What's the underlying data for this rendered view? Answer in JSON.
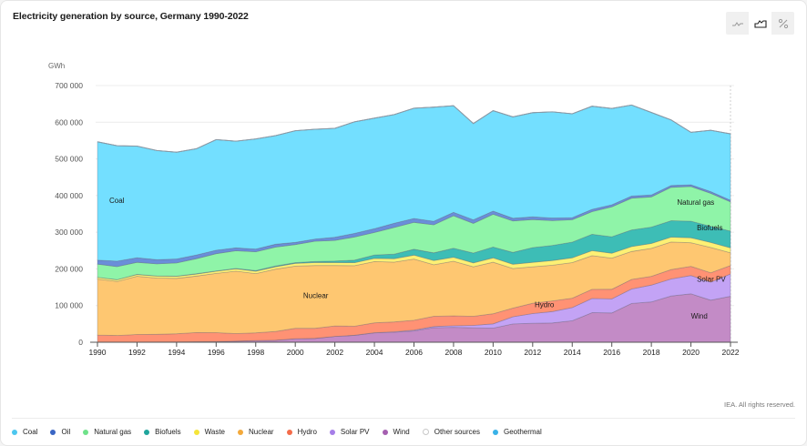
{
  "header": {
    "title": "Electricity generation by source, Germany 1990-2022"
  },
  "view_toggle": {
    "options": [
      {
        "name": "line-view",
        "icon": "line-chart-icon",
        "active": false
      },
      {
        "name": "area-view",
        "icon": "area-chart-icon",
        "active": true
      },
      {
        "name": "percent-view",
        "icon": "percent-icon",
        "active": false
      }
    ]
  },
  "footer": {
    "credit": "IEA. All rights reserved."
  },
  "chart_data": {
    "type": "area",
    "stacked": true,
    "title": "Electricity generation by source, Germany 1990-2022",
    "ylabel": "GWh",
    "xlabel": "",
    "ylim": [
      0,
      700000
    ],
    "yticks": [
      0,
      100000,
      200000,
      300000,
      400000,
      500000,
      600000,
      700000
    ],
    "ytick_labels": [
      "0",
      "100 000",
      "200 000",
      "300 000",
      "400 000",
      "500 000",
      "600 000",
      "700 000"
    ],
    "xticks": [
      1990,
      1992,
      1994,
      1996,
      1998,
      2000,
      2002,
      2004,
      2006,
      2008,
      2010,
      2012,
      2014,
      2016,
      2018,
      2020,
      2022
    ],
    "grid": true,
    "legend_position": "bottom",
    "x": [
      1990,
      1991,
      1992,
      1993,
      1994,
      1995,
      1996,
      1997,
      1998,
      1999,
      2000,
      2001,
      2002,
      2003,
      2004,
      2005,
      2006,
      2007,
      2008,
      2009,
      2010,
      2011,
      2012,
      2013,
      2014,
      2015,
      2016,
      2017,
      2018,
      2019,
      2020,
      2021,
      2022
    ],
    "series": [
      {
        "name": "Wind",
        "color": "#c38bc6",
        "label_on_chart": true,
        "values": [
          0,
          0,
          300,
          600,
          900,
          1500,
          2000,
          3000,
          4500,
          5500,
          9500,
          10500,
          15800,
          18700,
          25500,
          27200,
          30700,
          39700,
          40600,
          39400,
          38500,
          49900,
          51700,
          52700,
          58500,
          80600,
          80000,
          105700,
          110000,
          126000,
          132000,
          114600,
          125300
        ]
      },
      {
        "name": "Solar PV",
        "color": "#c3a3f5",
        "label_on_chart": true,
        "values": [
          0,
          0,
          0,
          0,
          0,
          0,
          0,
          0,
          0,
          0,
          100,
          200,
          200,
          300,
          600,
          1300,
          2200,
          3100,
          4400,
          6600,
          11700,
          19600,
          26400,
          31000,
          36100,
          38700,
          38100,
          39400,
          45800,
          46400,
          50000,
          49300,
          60800
        ]
      },
      {
        "name": "Hydro",
        "color": "#ff9274",
        "label_on_chart": true,
        "values": [
          19700,
          18400,
          20900,
          21000,
          22100,
          24800,
          24100,
          20600,
          21000,
          23800,
          28300,
          27300,
          28500,
          24700,
          26700,
          26800,
          26800,
          28000,
          27100,
          24800,
          27400,
          23500,
          28100,
          29100,
          25500,
          24900,
          26300,
          26200,
          24000,
          25800,
          24900,
          25500,
          23100
        ]
      },
      {
        "name": "Nuclear",
        "color": "#fec771",
        "label_on_chart": true,
        "values": [
          152500,
          147400,
          158800,
          153500,
          151200,
          154100,
          161600,
          170300,
          161600,
          170000,
          169600,
          171300,
          164800,
          165100,
          167100,
          163100,
          167300,
          140500,
          148800,
          134900,
          140600,
          108000,
          99500,
          97300,
          97100,
          91800,
          84900,
          76300,
          76000,
          75100,
          64400,
          69100,
          34700
        ]
      },
      {
        "name": "Waste",
        "color": "#fdf074",
        "label_on_chart": false,
        "values": [
          4700,
          4600,
          4800,
          5100,
          5400,
          5600,
          5900,
          6200,
          6400,
          6600,
          7400,
          7800,
          8000,
          8200,
          8800,
          9500,
          10600,
          11700,
          10900,
          10800,
          11900,
          11800,
          12200,
          12900,
          13100,
          13800,
          13400,
          13300,
          13500,
          13500,
          13700,
          13600,
          13500
        ]
      },
      {
        "name": "Biofuels",
        "color": "#3dbdb6",
        "label_on_chart": true,
        "values": [
          200,
          300,
          400,
          500,
          700,
          800,
          1000,
          1200,
          1800,
          2000,
          2300,
          3000,
          4100,
          7000,
          9300,
          12400,
          16000,
          20800,
          24500,
          26800,
          29500,
          32100,
          40200,
          41100,
          42800,
          44500,
          45000,
          45400,
          44700,
          44500,
          45100,
          44100,
          45800
        ]
      },
      {
        "name": "Natural gas",
        "color": "#8ff4a8",
        "label_on_chart": true,
        "values": [
          35900,
          35700,
          32700,
          33000,
          35900,
          41100,
          46900,
          48100,
          51400,
          51600,
          49200,
          55500,
          56300,
          62900,
          61400,
          72700,
          73400,
          76500,
          88800,
          80900,
          89300,
          86100,
          76400,
          67500,
          61100,
          62000,
          81300,
          86700,
          82500,
          91300,
          94600,
          90000,
          79500
        ]
      },
      {
        "name": "Oil",
        "color": "#6a8ed9",
        "label_on_chart": false,
        "values": [
          10800,
          14800,
          12700,
          11500,
          10900,
          10200,
          9500,
          8100,
          7600,
          7900,
          5900,
          6000,
          8700,
          9900,
          10300,
          11600,
          10500,
          9600,
          9200,
          9600,
          8700,
          7200,
          7600,
          7200,
          5700,
          6200,
          5800,
          5600,
          5200,
          4800,
          4700,
          4600,
          4500
        ]
      },
      {
        "name": "Coal",
        "color": "#73dfff",
        "label_on_chart": true,
        "values": [
          322800,
          314700,
          304300,
          297600,
          291100,
          289600,
          301500,
          290800,
          300300,
          296000,
          304500,
          299200,
          296900,
          304400,
          301500,
          296300,
          300600,
          311300,
          290800,
          262800,
          274000,
          276500,
          284000,
          289500,
          283100,
          281200,
          262600,
          248200,
          224900,
          178700,
          142900,
          167200,
          181100
        ]
      },
      {
        "name": "Other sources",
        "color": "#d9d9d9",
        "label_on_chart": false,
        "values": [
          0,
          0,
          0,
          0,
          0,
          0,
          0,
          0,
          0,
          0,
          0,
          0,
          0,
          0,
          0,
          0,
          0,
          0,
          0,
          0,
          0,
          0,
          0,
          0,
          0,
          0,
          0,
          0,
          0,
          0,
          0,
          0,
          0
        ]
      },
      {
        "name": "Geothermal",
        "color": "#4fc3f7",
        "label_on_chart": false,
        "values": [
          0,
          0,
          0,
          0,
          0,
          0,
          0,
          0,
          0,
          0,
          0,
          0,
          0,
          0,
          0,
          0,
          0,
          0,
          0,
          0,
          0,
          0,
          0,
          0,
          0,
          100,
          200,
          200,
          200,
          200,
          200,
          200,
          200
        ]
      }
    ],
    "legend": [
      "Coal",
      "Oil",
      "Natural gas",
      "Biofuels",
      "Waste",
      "Nuclear",
      "Hydro",
      "Solar PV",
      "Wind",
      "Other sources",
      "Geothermal"
    ],
    "legend_colors": {
      "Coal": "#4dc7ef",
      "Oil": "#3a66c4",
      "Natural gas": "#6fe28a",
      "Biofuels": "#1fa59c",
      "Waste": "#f5e53a",
      "Nuclear": "#f3a93b",
      "Hydro": "#f46c4a",
      "Solar PV": "#a67ee8",
      "Wind": "#a55fb0",
      "Other sources": "#d4d4d4",
      "Geothermal": "#3ab2e8"
    },
    "on_chart_labels": [
      {
        "series": "Coal",
        "text": "Coal",
        "x": 1990.6,
        "y": 380000
      },
      {
        "series": "Nuclear",
        "text": "Nuclear",
        "x": 2000.4,
        "y": 120000
      },
      {
        "series": "Hydro",
        "text": "Hydro",
        "x": 2012.1,
        "y": 95000
      },
      {
        "series": "Natural gas",
        "text": "Natural gas",
        "x": 2019.3,
        "y": 375000
      },
      {
        "series": "Biofuels",
        "text": "Biofuels",
        "x": 2020.3,
        "y": 305000
      },
      {
        "series": "Solar PV",
        "text": "Solar PV",
        "x": 2020.3,
        "y": 165000
      },
      {
        "series": "Wind",
        "text": "Wind",
        "x": 2020,
        "y": 65000
      }
    ]
  }
}
